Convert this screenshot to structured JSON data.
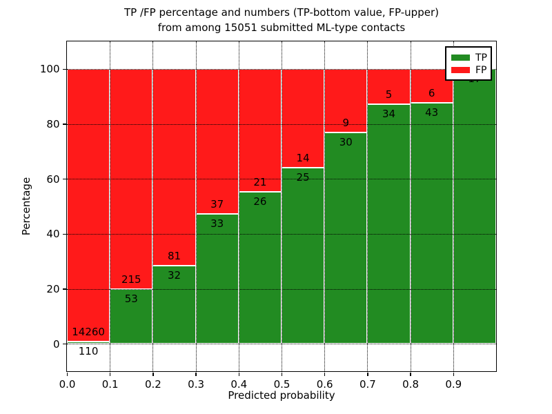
{
  "title": {
    "line1": "TP /FP percentage and numbers (TP-bottom value, FP-upper)",
    "line2": "from among 15051 submitted ML-type contacts"
  },
  "chart_data": {
    "type": "bar",
    "stacked": true,
    "title": "TP /FP percentage and numbers (TP-bottom value, FP-upper) from among 15051 submitted ML-type contacts",
    "xlabel": "Predicted probability",
    "ylabel": "Percentage",
    "total_contacts": 15051,
    "xlim": [
      0.0,
      1.0
    ],
    "ylim": [
      -10,
      110
    ],
    "bins": [
      0.0,
      0.1,
      0.2,
      0.3,
      0.4,
      0.5,
      0.6,
      0.7,
      0.8,
      0.9
    ],
    "bin_width": 0.1,
    "x_tick_labels": [
      "0.0",
      "0.1",
      "0.2",
      "0.3",
      "0.4",
      "0.5",
      "0.6",
      "0.7",
      "0.8",
      "0.9"
    ],
    "y_ticks": [
      0,
      20,
      40,
      60,
      80,
      100
    ],
    "grid": "dotted",
    "grid_above_bars": true,
    "bar_edge_color": "#ffffff",
    "legend_position": "upper right",
    "series": [
      {
        "name": "TP",
        "color": "#228b22",
        "counts": [
          110,
          53,
          32,
          33,
          26,
          25,
          30,
          34,
          43,
          17
        ],
        "percent": [
          0.77,
          19.78,
          28.32,
          47.14,
          55.32,
          64.1,
          76.92,
          87.18,
          87.76,
          100.0
        ]
      },
      {
        "name": "FP",
        "color": "#ff1a1a",
        "counts": [
          14260,
          215,
          81,
          37,
          21,
          14,
          9,
          5,
          6,
          0
        ],
        "percent": [
          99.23,
          80.22,
          71.68,
          52.86,
          44.68,
          35.9,
          23.08,
          12.82,
          12.24,
          0.0
        ]
      }
    ]
  }
}
